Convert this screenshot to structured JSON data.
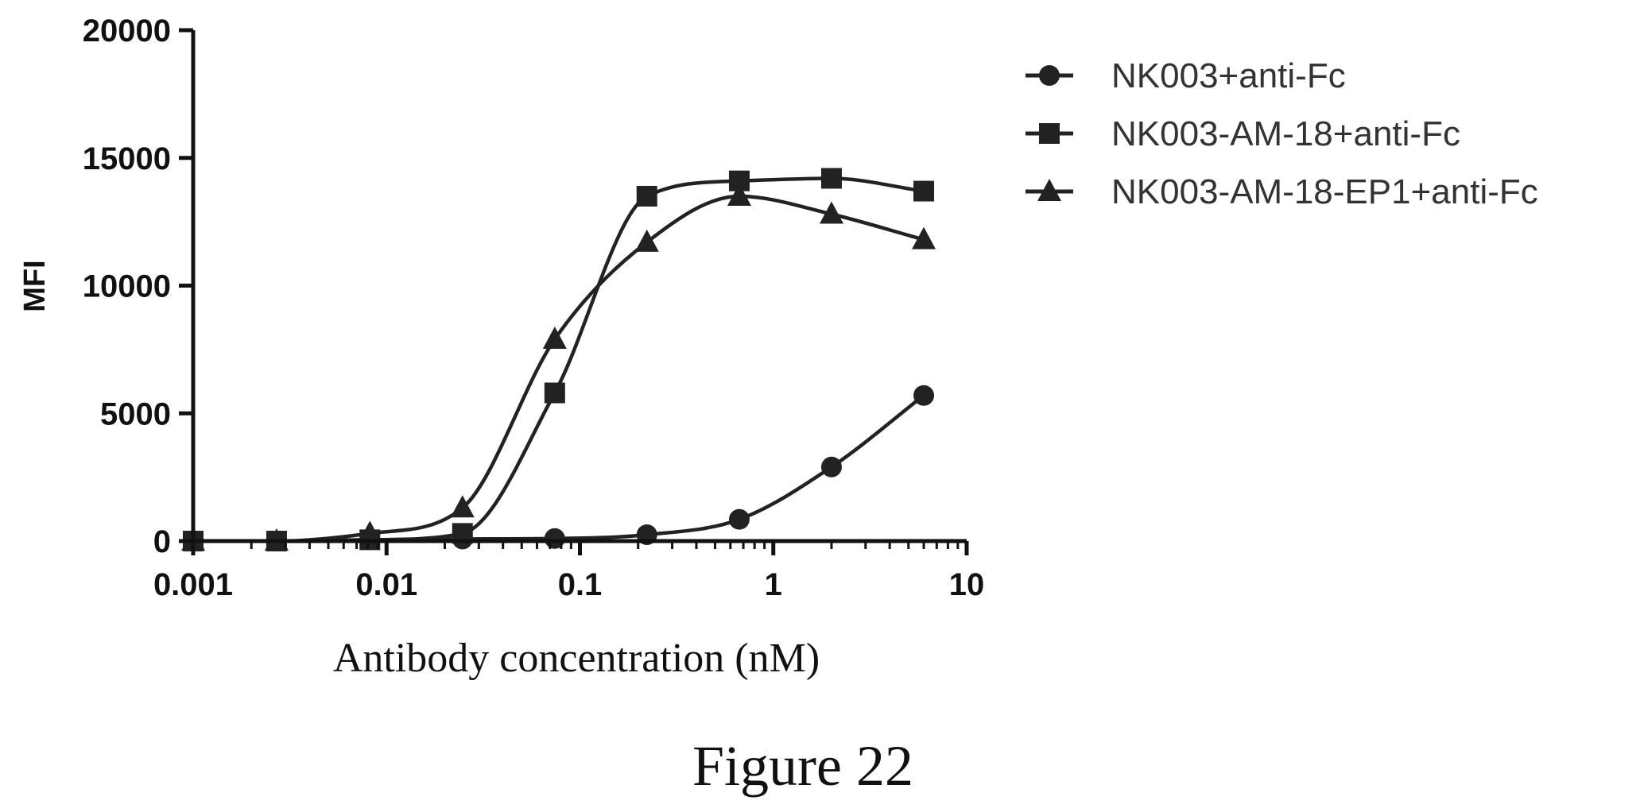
{
  "figure_caption": "Figure 22",
  "chart_data": {
    "type": "scatter",
    "title": "",
    "xlabel": "Antibody concentration (nM)",
    "ylabel": "MFI",
    "xscale": "log",
    "xlim": [
      0.001,
      10
    ],
    "ylim": [
      0,
      20000
    ],
    "x_ticks": [
      0.001,
      0.01,
      0.1,
      1,
      10
    ],
    "x_tick_labels": [
      "0.001",
      "0.01",
      "0.1",
      "1",
      "10"
    ],
    "y_ticks": [
      0,
      5000,
      10000,
      15000,
      20000
    ],
    "y_tick_labels": [
      "0",
      "5000",
      "10000",
      "15000",
      "20000"
    ],
    "grid": false,
    "legend_position": "top-right, outside plot",
    "fit_curves": true,
    "series": [
      {
        "name": "NK003+anti-Fc",
        "marker": "circle",
        "color": "#222222",
        "x": [
          0.001,
          0.0027,
          0.0082,
          0.0247,
          0.0741,
          0.222,
          0.667,
          2.0,
          6.0
        ],
        "y": [
          0,
          0,
          50,
          80,
          100,
          250,
          850,
          2900,
          5700
        ]
      },
      {
        "name": "NK003-AM-18+anti-Fc",
        "marker": "square",
        "color": "#222222",
        "x": [
          0.001,
          0.0027,
          0.0082,
          0.0247,
          0.0741,
          0.222,
          0.667,
          2.0,
          6.0
        ],
        "y": [
          0,
          0,
          50,
          300,
          5800,
          13500,
          14100,
          14200,
          13700
        ]
      },
      {
        "name": "NK003-AM-18-EP1+anti-Fc",
        "marker": "triangle",
        "color": "#222222",
        "x": [
          0.001,
          0.0027,
          0.0082,
          0.0247,
          0.0741,
          0.222,
          0.667,
          2.0,
          6.0
        ],
        "y": [
          0,
          0,
          300,
          1300,
          7900,
          11700,
          13500,
          12800,
          11800
        ]
      }
    ]
  }
}
